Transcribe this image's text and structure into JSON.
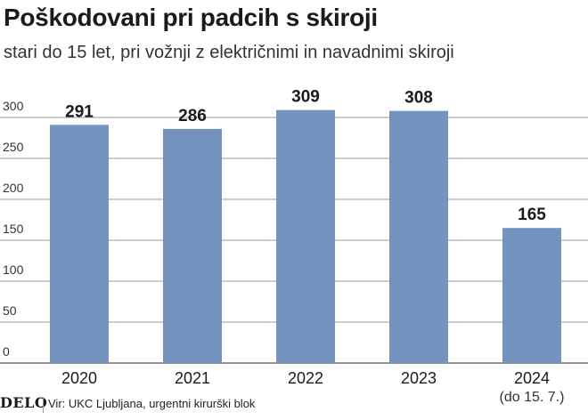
{
  "header": {
    "title": "Poškodovani pri padcih s skiroji",
    "subtitle": "stari do 15 let, pri vožnji z električnimi in navadnimi skiroji"
  },
  "footer": {
    "logo": "DELO",
    "source": "Vir: UKC Ljubljana, urgentni kirurški blok"
  },
  "chart_data": {
    "type": "bar",
    "categories": [
      "2020",
      "2021",
      "2022",
      "2023",
      "2024"
    ],
    "category_notes": [
      "",
      "",
      "",
      "",
      "(do 15. 7.)"
    ],
    "values": [
      291,
      286,
      309,
      308,
      165
    ],
    "ylim": [
      0,
      300
    ],
    "yticks": [
      0,
      50,
      100,
      150,
      200,
      250,
      300
    ],
    "grid": true,
    "bar_color": "#7593bf"
  }
}
